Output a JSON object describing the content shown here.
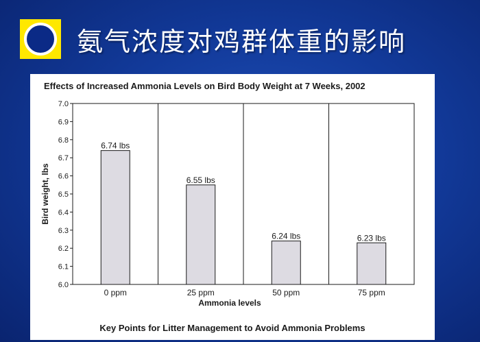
{
  "slide": {
    "title": "氨气浓度对鸡群体重的影响",
    "logo_icon": "yellow-square-ring-icon"
  },
  "figure": {
    "footer": "Key Points for Litter Management to Avoid Ammonia Problems"
  },
  "colors": {
    "bar_fill": "#dddbe2",
    "bar_stroke": "#1a1a1a",
    "logo_yellow": "#ffe800",
    "background": "#123a9a"
  },
  "chart_data": {
    "type": "bar",
    "title": "Effects of Increased Ammonia Levels on Bird Body Weight at 7 Weeks, 2002",
    "xlabel": "Ammonia levels",
    "ylabel": "Bird weight, lbs",
    "categories": [
      "0 ppm",
      "25 ppm",
      "50 ppm",
      "75 ppm"
    ],
    "values": [
      6.74,
      6.55,
      6.24,
      6.23
    ],
    "data_labels": [
      "6.74 lbs",
      "6.55 lbs",
      "6.24 lbs",
      "6.23 lbs"
    ],
    "ylim": [
      6.0,
      7.0
    ],
    "yticks": [
      "6.0",
      "6.1",
      "6.2",
      "6.3",
      "6.4",
      "6.5",
      "6.6",
      "6.7",
      "6.8",
      "6.9",
      "7.0"
    ],
    "grid": "vertical-category-dividers",
    "legend": "none"
  }
}
